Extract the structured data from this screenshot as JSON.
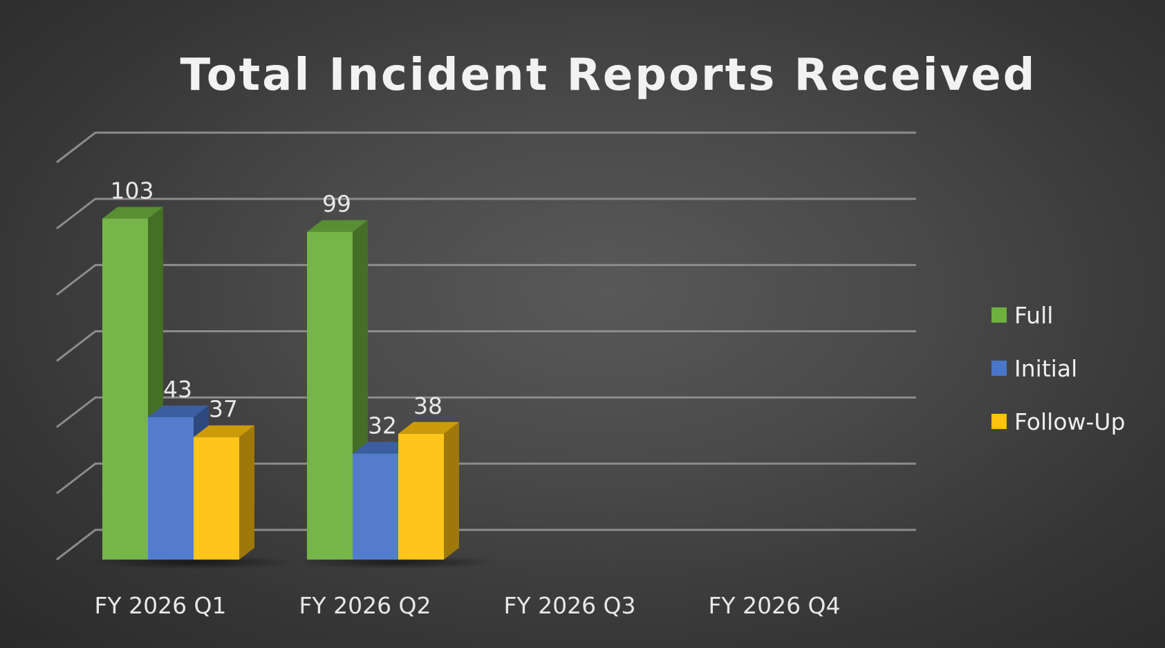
{
  "chart_data": {
    "type": "bar",
    "title": "Total Incident Reports Received",
    "xlabel": "",
    "ylabel": "",
    "categories": [
      "FY 2026 Q1",
      "FY 2026 Q2",
      "FY 2026 Q3",
      "FY 2026 Q4"
    ],
    "series": [
      {
        "name": "Full",
        "values": [
          103,
          99,
          null,
          null
        ],
        "color": "#6fb13f"
      },
      {
        "name": "Initial",
        "values": [
          43,
          32,
          null,
          null
        ],
        "color": "#4a76c9"
      },
      {
        "name": "Follow-Up",
        "values": [
          37,
          38,
          null,
          null
        ],
        "color": "#ffc20e"
      }
    ],
    "ylim": [
      0,
      120
    ],
    "grid": true,
    "legend": "right",
    "data_labels": true,
    "style": "3d-clustered-column"
  }
}
